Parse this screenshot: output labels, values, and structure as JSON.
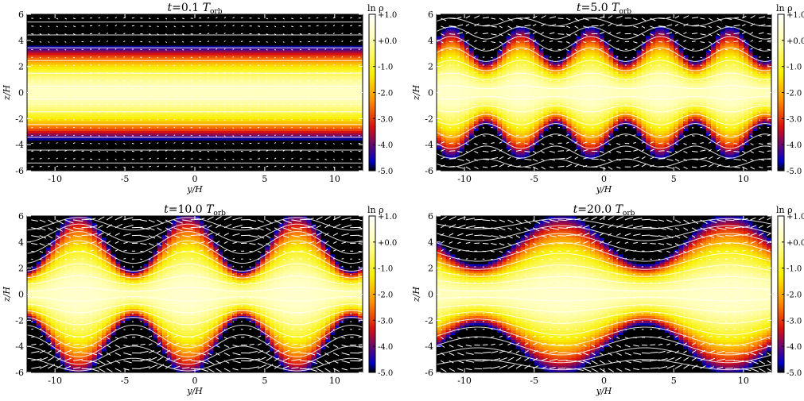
{
  "colorbar": {
    "label": "ln ρ",
    "ticks": [
      "+1.0",
      "+0.0",
      "-1.0",
      "-2.0",
      "-3.0",
      "-4.0",
      "-5.0"
    ],
    "range": [
      -5.0,
      1.0
    ],
    "colors": [
      "#000000",
      "#0000c8",
      "#d81010",
      "#ff9000",
      "#f8f000",
      "#ffffb8",
      "#ffffff"
    ]
  },
  "chart_data": [
    {
      "type": "heatmap",
      "title_var": "t",
      "title_value": "=0.1",
      "title_unit": "T",
      "title_sub": "orb",
      "xlabel": "y/H",
      "ylabel": "z/H",
      "xlim": [
        -12,
        12
      ],
      "ylim": [
        -6,
        6
      ],
      "xticks": [
        -10,
        -5,
        0,
        5,
        10
      ],
      "yticks": [
        -6,
        -4,
        -2,
        0,
        2,
        4,
        6
      ],
      "scale_height": 1.1,
      "wave_amplitude": 0.0,
      "wave_period": 8,
      "wave_phase": 0,
      "arrow_magnitude": 0.1,
      "field_line_count": 12
    },
    {
      "type": "heatmap",
      "title_var": "t",
      "title_value": "=5.0",
      "title_unit": "T",
      "title_sub": "orb",
      "xlabel": "y/H",
      "ylabel": "z/H",
      "xlim": [
        -12,
        12
      ],
      "ylim": [
        -6,
        6
      ],
      "xticks": [
        -10,
        -5,
        0,
        5,
        10
      ],
      "yticks": [
        -6,
        -4,
        -2,
        0,
        2,
        4,
        6
      ],
      "scale_height": 1.15,
      "wave_amplitude": 0.35,
      "wave_period": 5,
      "wave_phase": 1.2,
      "arrow_magnitude": 0.6,
      "field_line_count": 14
    },
    {
      "type": "heatmap",
      "title_var": "t",
      "title_value": "=10.0",
      "title_unit": "T",
      "title_sub": "orb",
      "xlabel": "y/H",
      "ylabel": "z/H",
      "xlim": [
        -12,
        12
      ],
      "ylim": [
        -6,
        6
      ],
      "xticks": [
        -10,
        -5,
        0,
        5,
        10
      ],
      "yticks": [
        -6,
        -4,
        -2,
        0,
        2,
        4,
        6
      ],
      "scale_height": 1.25,
      "wave_amplitude": 0.55,
      "wave_period": 7.8,
      "wave_phase": 0.4,
      "arrow_magnitude": 1.0,
      "field_line_count": 16
    },
    {
      "type": "heatmap",
      "title_var": "t",
      "title_value": "=20.0",
      "title_unit": "T",
      "title_sub": "orb",
      "xlabel": "y/H",
      "ylabel": "z/H",
      "xlim": [
        -12,
        12
      ],
      "ylim": [
        -6,
        6
      ],
      "xticks": [
        -10,
        -5,
        0,
        5,
        10
      ],
      "yticks": [
        -6,
        -4,
        -2,
        0,
        2,
        4,
        6
      ],
      "scale_height": 1.3,
      "wave_amplitude": 0.45,
      "wave_period": 12,
      "wave_phase": 1.6,
      "arrow_magnitude": 0.9,
      "field_line_count": 16
    }
  ]
}
